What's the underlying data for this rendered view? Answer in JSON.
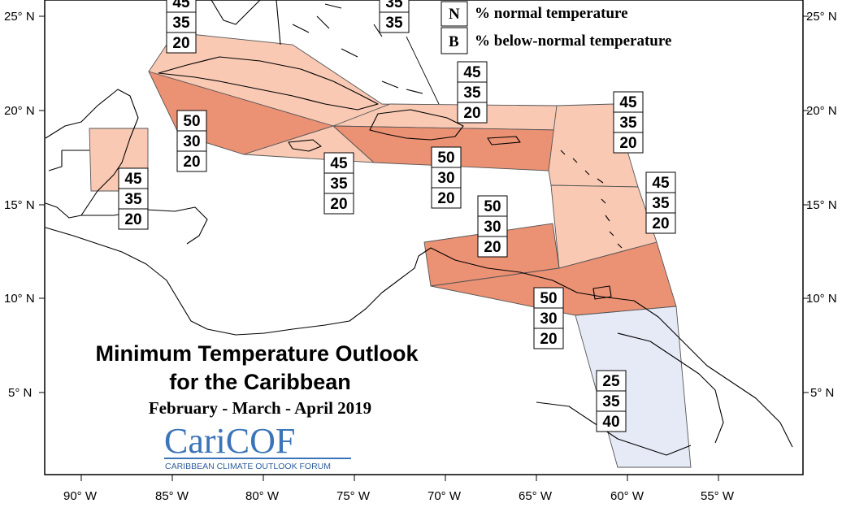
{
  "title": {
    "line1": "Minimum Temperature Outlook",
    "line2": "for the Caribbean",
    "period": "February - March - April 2019"
  },
  "logo": {
    "name": "CariCOF",
    "tagline": "CARIBBEAN CLIMATE OUTLOOK FORUM"
  },
  "legend": [
    {
      "key": "N",
      "text": "% normal temperature"
    },
    {
      "key": "B",
      "text": "% below-normal temperature"
    }
  ],
  "axes": {
    "lon_labels": [
      "90° W",
      "85° W",
      "80° W",
      "75° W",
      "70° W",
      "65° W",
      "60° W",
      "55° W"
    ],
    "lat_labels": [
      "25° N",
      "20° N",
      "15° N",
      "10° N",
      "5° N"
    ]
  },
  "colors": {
    "above_light": "#f9c9b4",
    "above_strong": "#eb9174",
    "below_light": "#e6eaf6",
    "outline": "#555555"
  },
  "forecast_boxes": [
    {
      "id": "bahamas-north-a",
      "values": [
        "45",
        "35",
        "20"
      ]
    },
    {
      "id": "bahamas-north-b",
      "values": [
        "35",
        "35"
      ]
    },
    {
      "id": "northern-leewards",
      "values": [
        "45",
        "35",
        "20"
      ]
    },
    {
      "id": "west-cuba",
      "values": [
        "50",
        "30",
        "20"
      ]
    },
    {
      "id": "jamaica",
      "values": [
        "45",
        "35",
        "20"
      ]
    },
    {
      "id": "hispaniola",
      "values": [
        "50",
        "30",
        "20"
      ]
    },
    {
      "id": "belize",
      "values": [
        "45",
        "35",
        "20"
      ]
    },
    {
      "id": "east-leewards",
      "values": [
        "45",
        "35",
        "20"
      ]
    },
    {
      "id": "windwards",
      "values": [
        "45",
        "35",
        "20"
      ]
    },
    {
      "id": "abc-islands",
      "values": [
        "50",
        "30",
        "20"
      ]
    },
    {
      "id": "trinidad",
      "values": [
        "50",
        "30",
        "20"
      ]
    },
    {
      "id": "guianas",
      "values": [
        "25",
        "35",
        "40"
      ]
    }
  ]
}
